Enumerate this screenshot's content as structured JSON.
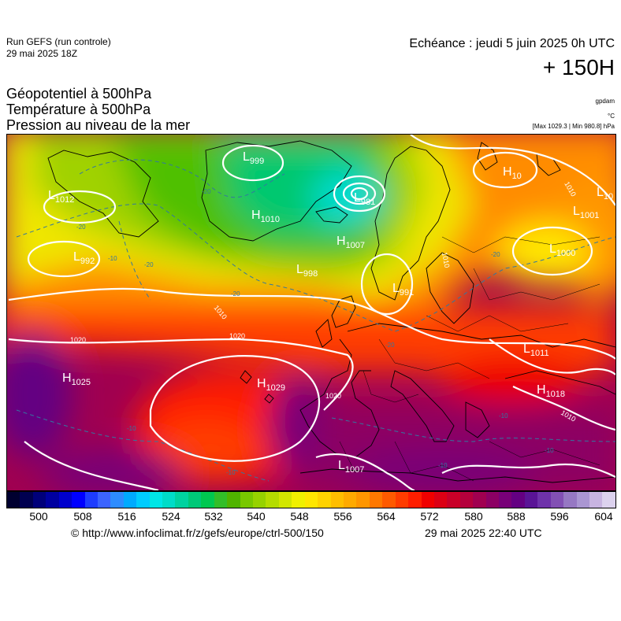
{
  "header": {
    "run": "Run GEFS (run controle)",
    "run_date": "29 mai 2025 18Z",
    "valid": "Echéance : jeudi 5 juin 2025 0h UTC",
    "lead": "+ 150H"
  },
  "parameters": [
    "Géopotentiel à 500hPa",
    "Température à 500hPa",
    "Pression au niveau de la mer"
  ],
  "units": {
    "geopotential": "gpdam",
    "temperature": "°C",
    "pressure": "[Max 1029.3 | Min 980.8] hPa"
  },
  "colorbar": {
    "labels": [
      "500",
      "508",
      "516",
      "524",
      "532",
      "540",
      "548",
      "556",
      "564",
      "572",
      "580",
      "588",
      "596",
      "604"
    ],
    "colors": [
      "#000030",
      "#000050",
      "#00007a",
      "#0000a0",
      "#0000cc",
      "#0000ff",
      "#1e3cff",
      "#3c64ff",
      "#2d8cff",
      "#00aaff",
      "#00ccff",
      "#00e6e6",
      "#00dcc8",
      "#00d2a0",
      "#00c878",
      "#00c850",
      "#32be28",
      "#50b400",
      "#78c800",
      "#96d200",
      "#b4dc00",
      "#d2e600",
      "#f0f000",
      "#ffe600",
      "#ffd200",
      "#ffbe00",
      "#ffaa00",
      "#ff9600",
      "#ff7800",
      "#ff5a00",
      "#ff3c00",
      "#ff1e00",
      "#f00000",
      "#dc0014",
      "#c80028",
      "#b4003c",
      "#a00050",
      "#8c0064",
      "#780078",
      "#640082",
      "#5a1496",
      "#6e32aa",
      "#8250b4",
      "#9678c3",
      "#aa96d2",
      "#c8b4e1",
      "#dcd2ee"
    ]
  },
  "pressure_systems": [
    {
      "type": "L",
      "value": "1012"
    },
    {
      "type": "L",
      "value": "992"
    },
    {
      "type": "L",
      "value": "999"
    },
    {
      "type": "H",
      "value": "1010"
    },
    {
      "type": "L",
      "value": "981"
    },
    {
      "type": "H",
      "value": "1007"
    },
    {
      "type": "L",
      "value": "998"
    },
    {
      "type": "L",
      "value": "991"
    },
    {
      "type": "H",
      "value": "10"
    },
    {
      "type": "L",
      "value": "10"
    },
    {
      "type": "L",
      "value": "1001"
    },
    {
      "type": "L",
      "value": "1000"
    },
    {
      "type": "H",
      "value": "1025"
    },
    {
      "type": "H",
      "value": "1029"
    },
    {
      "type": "L",
      "value": "1011"
    },
    {
      "type": "H",
      "value": "1018"
    },
    {
      "type": "L",
      "value": "1007"
    }
  ],
  "isobar_labels": [
    "1020",
    "1020",
    "1020",
    "1010",
    "1010",
    "1010",
    "1010"
  ],
  "isotherm_labels": [
    "-20",
    "-20",
    "-20",
    "-20",
    "-20",
    "-20",
    "-10",
    "-10",
    "-10",
    "-10",
    "-10",
    "-10"
  ],
  "footer": {
    "source": "© http://www.infoclimat.fr/z/gefs/europe/ctrl-500/150",
    "generated": "29 mai 2025 22:40 UTC"
  }
}
